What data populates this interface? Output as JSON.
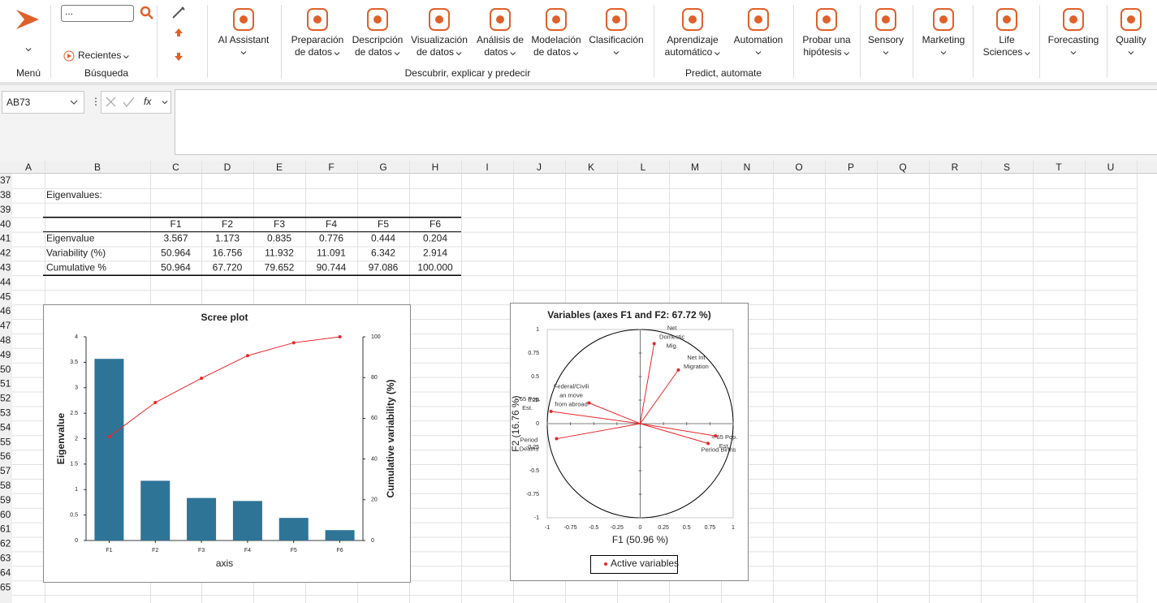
{
  "ribbon": {
    "menu_label": "Menú",
    "search": {
      "input": "...",
      "recent": "Recientes",
      "label": "Búsqueda"
    },
    "buttons": [
      {
        "lines": [
          "AI Assistant"
        ]
      },
      {
        "lines": [
          "Preparación",
          "de datos"
        ]
      },
      {
        "lines": [
          "Descripción",
          "de datos"
        ]
      },
      {
        "lines": [
          "Visualización",
          "de datos"
        ]
      },
      {
        "lines": [
          "Análisis de",
          "datos"
        ]
      },
      {
        "lines": [
          "Modelación",
          "de datos"
        ]
      },
      {
        "lines": [
          "Clasificación"
        ]
      },
      {
        "lines": [
          "Aprendizaje",
          "automático"
        ]
      },
      {
        "lines": [
          "Automation"
        ]
      },
      {
        "lines": [
          "Probar una",
          "hipótesis"
        ]
      },
      {
        "lines": [
          "Sensory"
        ]
      },
      {
        "lines": [
          "Marketing"
        ]
      },
      {
        "lines": [
          "Life",
          "Sciences"
        ]
      },
      {
        "lines": [
          "Forecasting"
        ]
      },
      {
        "lines": [
          "Quality"
        ]
      }
    ],
    "group_labels": [
      "Descubrir, explicar y predecir",
      "Predict, automate"
    ]
  },
  "formula_bar": {
    "name_box": "AB73",
    "function_icon": "fx"
  },
  "sheet": {
    "columns": [
      "A",
      "B",
      "C",
      "D",
      "E",
      "F",
      "G",
      "H",
      "I",
      "J",
      "K",
      "L",
      "M",
      "N",
      "O",
      "P",
      "Q",
      "R",
      "S",
      "T",
      "U"
    ],
    "rows": [
      37,
      38,
      39,
      40,
      41,
      42,
      43,
      44,
      45,
      46,
      47,
      48,
      49,
      50,
      51,
      52,
      53,
      54,
      55,
      56,
      57,
      58,
      59,
      60,
      61,
      62,
      63,
      64,
      65
    ]
  },
  "table": {
    "title": "Eigenvalues:",
    "header": [
      "F1",
      "F2",
      "F3",
      "F4",
      "F5",
      "F6"
    ],
    "rows": [
      [
        "Eigenvalue",
        "3.567",
        "1.173",
        "0.835",
        "0.776",
        "0.444",
        "0.204"
      ],
      [
        "Variability (%)",
        "50.964",
        "16.756",
        "11.932",
        "11.091",
        "6.342",
        "2.914"
      ],
      [
        "Cumulative %",
        "50.964",
        "67.720",
        "79.652",
        "90.744",
        "97.086",
        "100.000"
      ]
    ]
  },
  "chart_data": [
    {
      "type": "bar",
      "title": "Scree plot",
      "categories": [
        "F1",
        "F2",
        "F3",
        "F4",
        "F5",
        "F6"
      ],
      "series": [
        {
          "type": "bar",
          "color": "#2e7497",
          "values": [
            3.567,
            1.173,
            0.835,
            0.776,
            0.444,
            0.204
          ]
        },
        {
          "type": "line",
          "axis": "y2",
          "color": "#e8262a",
          "values": [
            50.964,
            67.72,
            79.652,
            90.744,
            97.086,
            100
          ]
        }
      ],
      "ylim": [
        0,
        4
      ],
      "yticks": [
        0,
        0.5,
        1,
        1.5,
        2,
        2.5,
        3,
        3.5,
        4
      ],
      "y2lim": [
        0,
        100
      ],
      "y2ticks": [
        0,
        20,
        40,
        60,
        80,
        100
      ],
      "xlabel": "axis",
      "ylabel": "Eigenvalue",
      "y2label": "Cumulative variability (%)"
    },
    {
      "type": "scatter",
      "title": "Variables (axes F1 and F2: 67.72 %)",
      "xlabel": "F1 (50.96 %)",
      "ylabel": "F2 (16.76 %)",
      "xlim": [
        -1,
        1
      ],
      "ylim": [
        -1,
        1
      ],
      "xticks": [
        -1,
        -0.75,
        -0.5,
        -0.25,
        0,
        0.25,
        0.5,
        0.75,
        1
      ],
      "yticks": [
        -1,
        -0.75,
        -0.5,
        -0.25,
        0,
        0.25,
        0.5,
        0.75,
        1
      ],
      "series": [
        {
          "name": "Active variables",
          "color": "#e8262a",
          "x": [
            0.15,
            0.41,
            -0.55,
            -0.96,
            -0.9,
            0.81,
            0.73
          ],
          "values": [
            0.85,
            0.57,
            0.22,
            0.13,
            -0.16,
            -0.13,
            -0.21
          ],
          "point_labels": [
            [
              "Net",
              "Domestic",
              "Mig."
            ],
            [
              "Net Int",
              "Migration"
            ],
            [
              "Federal/Civili",
              "an move",
              "from abroad"
            ],
            [
              "> 65 Pop.",
              "Est."
            ],
            [
              "Period",
              "Deaths"
            ],
            [
              "< 65 Pop.",
              "Est."
            ],
            [
              "Period Births"
            ]
          ]
        }
      ],
      "legend": "bottom"
    }
  ]
}
